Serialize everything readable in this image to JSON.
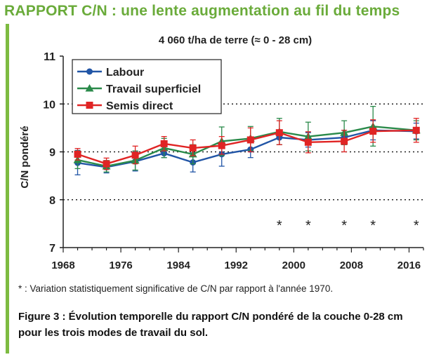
{
  "headline": "RAPPORT C/N : une lente augmentation au fil du temps",
  "footnote": "* : Variation statistiquement significative de C/N par rapport à l'année 1970.",
  "caption": "Figure 3  : Évolution temporelle du rapport C/N pondéré de la couche 0-28 cm pour les trois modes de travail du sol.",
  "colors": {
    "headline": "#6aab3a",
    "bar": "#7dbb41"
  },
  "chart_data": {
    "type": "line",
    "title": "4 060 t/ha de terre (≈ 0 - 28 cm)",
    "xlabel": "",
    "ylabel": "C/N pondéré",
    "xlim": [
      1968,
      2018
    ],
    "ylim": [
      7,
      11
    ],
    "xticks": [
      1968,
      1976,
      1984,
      1992,
      2000,
      2008,
      2016
    ],
    "yticks": [
      7,
      8,
      9,
      10,
      11
    ],
    "grid": {
      "y_dotted": [
        8,
        9,
        10
      ]
    },
    "legend": "top-left",
    "significance_marker": "*",
    "significance_years": [
      1998,
      2002,
      2007,
      2011,
      2017
    ],
    "series": [
      {
        "name": "Labour",
        "color": "#2155a6",
        "marker": "circle",
        "points": [
          {
            "x": 1970,
            "y": 8.77,
            "lo": 8.52,
            "hi": 9.03
          },
          {
            "x": 1974,
            "y": 8.68,
            "lo": 8.56,
            "hi": 8.8
          },
          {
            "x": 1978,
            "y": 8.8,
            "lo": 8.6,
            "hi": 9.0
          },
          {
            "x": 1982,
            "y": 8.97,
            "lo": 8.88,
            "hi": 9.06
          },
          {
            "x": 1986,
            "y": 8.78,
            "lo": 8.58,
            "hi": 8.98
          },
          {
            "x": 1990,
            "y": 8.95,
            "lo": 8.7,
            "hi": 9.2
          },
          {
            "x": 1994,
            "y": 9.05,
            "lo": 8.88,
            "hi": 9.22
          },
          {
            "x": 1998,
            "y": 9.3,
            "lo": 9.15,
            "hi": 9.45
          },
          {
            "x": 2002,
            "y": 9.25,
            "lo": 9.1,
            "hi": 9.4
          },
          {
            "x": 2007,
            "y": 9.3,
            "lo": 9.15,
            "hi": 9.45
          },
          {
            "x": 2011,
            "y": 9.45,
            "lo": 9.25,
            "hi": 9.65
          },
          {
            "x": 2017,
            "y": 9.43,
            "lo": 9.27,
            "hi": 9.6
          }
        ]
      },
      {
        "name": "Travail superficiel",
        "color": "#2a8a4a",
        "marker": "triangle",
        "points": [
          {
            "x": 1970,
            "y": 8.83,
            "lo": 8.65,
            "hi": 9.02
          },
          {
            "x": 1974,
            "y": 8.7,
            "lo": 8.58,
            "hi": 8.82
          },
          {
            "x": 1978,
            "y": 8.82,
            "lo": 8.62,
            "hi": 9.02
          },
          {
            "x": 1982,
            "y": 9.08,
            "lo": 8.88,
            "hi": 9.28
          },
          {
            "x": 1986,
            "y": 8.95,
            "lo": 8.75,
            "hi": 9.15
          },
          {
            "x": 1990,
            "y": 9.22,
            "lo": 8.92,
            "hi": 9.52
          },
          {
            "x": 1994,
            "y": 9.28,
            "lo": 9.03,
            "hi": 9.53
          },
          {
            "x": 1998,
            "y": 9.42,
            "lo": 9.15,
            "hi": 9.7
          },
          {
            "x": 2002,
            "y": 9.32,
            "lo": 9.02,
            "hi": 9.62
          },
          {
            "x": 2007,
            "y": 9.4,
            "lo": 9.15,
            "hi": 9.65
          },
          {
            "x": 2011,
            "y": 9.53,
            "lo": 9.12,
            "hi": 9.95
          },
          {
            "x": 2017,
            "y": 9.45,
            "lo": 9.25,
            "hi": 9.65
          }
        ]
      },
      {
        "name": "Semis direct",
        "color": "#e02424",
        "marker": "square",
        "points": [
          {
            "x": 1970,
            "y": 8.95,
            "lo": 8.83,
            "hi": 9.07
          },
          {
            "x": 1974,
            "y": 8.75,
            "lo": 8.63,
            "hi": 8.87
          },
          {
            "x": 1978,
            "y": 8.93,
            "lo": 8.75,
            "hi": 9.12
          },
          {
            "x": 1982,
            "y": 9.17,
            "lo": 9.02,
            "hi": 9.32
          },
          {
            "x": 1986,
            "y": 9.08,
            "lo": 8.92,
            "hi": 9.25
          },
          {
            "x": 1990,
            "y": 9.13,
            "lo": 8.95,
            "hi": 9.32
          },
          {
            "x": 1994,
            "y": 9.25,
            "lo": 9.0,
            "hi": 9.5
          },
          {
            "x": 1998,
            "y": 9.4,
            "lo": 9.15,
            "hi": 9.65
          },
          {
            "x": 2002,
            "y": 9.2,
            "lo": 8.98,
            "hi": 9.42
          },
          {
            "x": 2007,
            "y": 9.22,
            "lo": 9.0,
            "hi": 9.45
          },
          {
            "x": 2011,
            "y": 9.43,
            "lo": 9.2,
            "hi": 9.67
          },
          {
            "x": 2017,
            "y": 9.45,
            "lo": 9.2,
            "hi": 9.7
          }
        ]
      }
    ]
  }
}
